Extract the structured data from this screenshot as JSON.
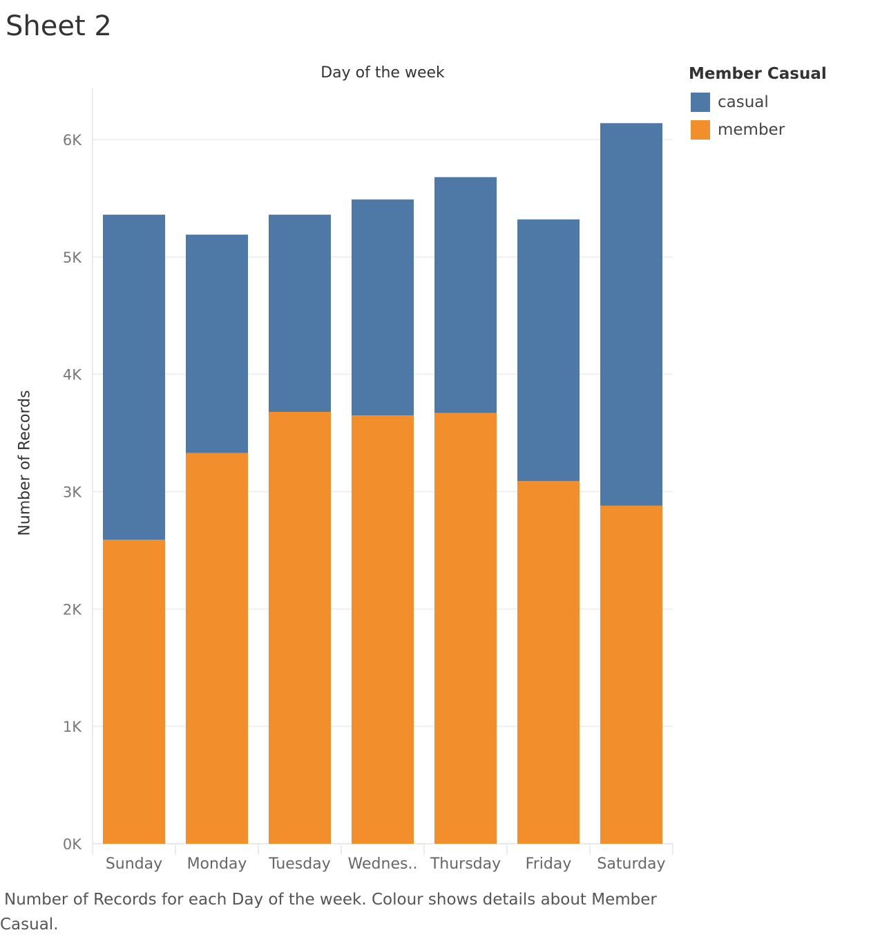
{
  "sheet": {
    "title": "Sheet 2",
    "caption": "Number of Records for each Day of the week.  Colour shows details about Member Casual."
  },
  "chart_data": {
    "type": "bar",
    "stacked": true,
    "x_header": "Day of the week",
    "ylabel": "Number of Records",
    "categories": [
      "Sunday",
      "Monday",
      "Tuesday",
      "Wednes..",
      "Thursday",
      "Friday",
      "Saturday"
    ],
    "series": [
      {
        "name": "member",
        "color": "#f28e2b",
        "values": [
          2590,
          3330,
          3680,
          3650,
          3670,
          3090,
          2880
        ]
      },
      {
        "name": "casual",
        "color": "#4e79a7",
        "values": [
          2770,
          1860,
          1680,
          1840,
          2010,
          2230,
          3260
        ]
      }
    ],
    "ylim": [
      0,
      6400
    ],
    "yticks": [
      0,
      1000,
      2000,
      3000,
      4000,
      5000,
      6000
    ],
    "ytick_labels": [
      "0K",
      "1K",
      "2K",
      "3K",
      "4K",
      "5K",
      "6K"
    ],
    "grid": true,
    "legend": {
      "title": "Member Casual",
      "placement": "top-right",
      "items": [
        {
          "label": "casual",
          "color": "#4e79a7"
        },
        {
          "label": "member",
          "color": "#f28e2b"
        }
      ]
    }
  }
}
